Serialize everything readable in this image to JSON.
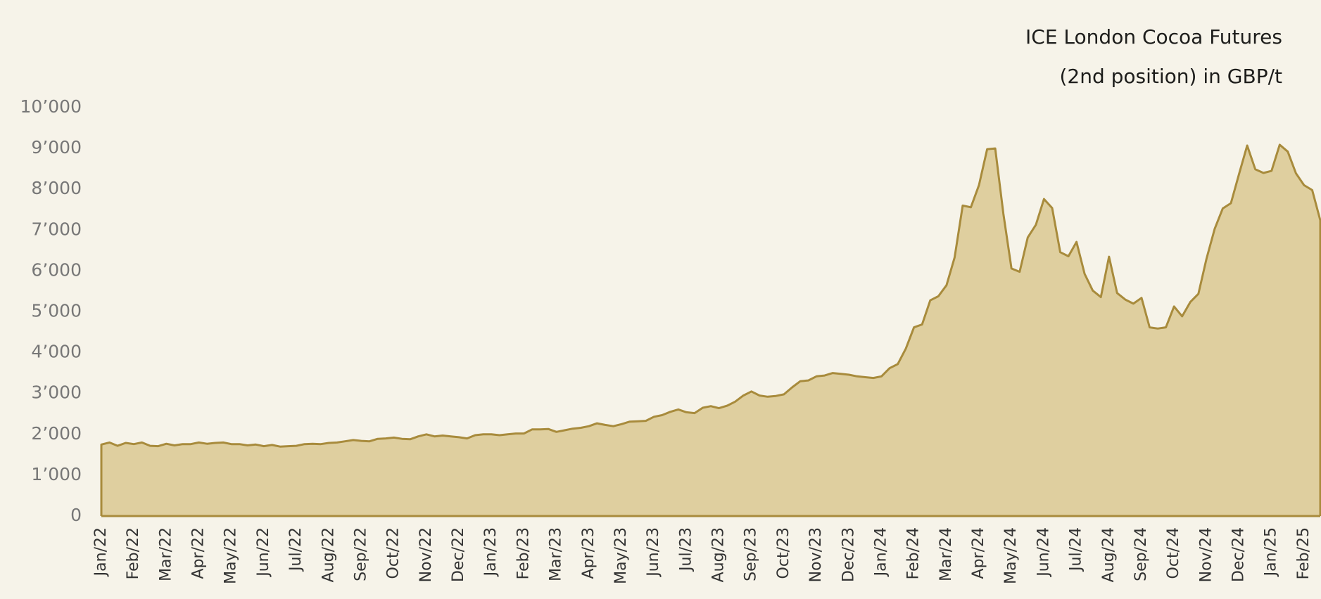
{
  "chart_data": {
    "type": "area",
    "title": "ICE London Cocoa Futures",
    "subtitle": "(2nd position) in GBP/t",
    "categories": [
      "Jan/22",
      null,
      null,
      null,
      "Feb/22",
      null,
      null,
      null,
      "Mar/22",
      null,
      null,
      null,
      "Apr/22",
      null,
      null,
      null,
      "May/22",
      null,
      null,
      null,
      "Jun/22",
      null,
      null,
      null,
      "Jul/22",
      null,
      null,
      null,
      "Aug/22",
      null,
      null,
      null,
      "Sep/22",
      null,
      null,
      null,
      "Oct/22",
      null,
      null,
      null,
      "Nov/22",
      null,
      null,
      null,
      "Dec/22",
      null,
      null,
      null,
      "Jan/23",
      null,
      null,
      null,
      "Feb/23",
      null,
      null,
      null,
      "Mar/23",
      null,
      null,
      null,
      "Apr/23",
      null,
      null,
      null,
      "May/23",
      null,
      null,
      null,
      "Jun/23",
      null,
      null,
      null,
      "Jul/23",
      null,
      null,
      null,
      "Aug/23",
      null,
      null,
      null,
      "Sep/23",
      null,
      null,
      null,
      "Oct/23",
      null,
      null,
      null,
      "Nov/23",
      null,
      null,
      null,
      "Dec/23",
      null,
      null,
      null,
      "Jan/24",
      null,
      null,
      null,
      "Feb/24",
      null,
      null,
      null,
      "Mar/24",
      null,
      null,
      null,
      "Apr/24",
      null,
      null,
      null,
      "May/24",
      null,
      null,
      null,
      "Jun/24",
      null,
      null,
      null,
      "Jul/24",
      null,
      null,
      null,
      "Aug/24",
      null,
      null,
      null,
      "Sep/24",
      null,
      null,
      null,
      "Oct/24",
      null,
      null,
      null,
      "Nov/24",
      null,
      null,
      null,
      "Dec/24",
      null,
      null,
      null,
      "Jan/25",
      null,
      null,
      null,
      "Feb/25",
      null,
      null
    ],
    "values": [
      1750,
      1800,
      1720,
      1790,
      1760,
      1800,
      1720,
      1710,
      1770,
      1730,
      1760,
      1760,
      1800,
      1770,
      1790,
      1800,
      1760,
      1760,
      1730,
      1750,
      1710,
      1740,
      1700,
      1710,
      1720,
      1760,
      1770,
      1760,
      1790,
      1800,
      1830,
      1860,
      1840,
      1830,
      1890,
      1900,
      1920,
      1890,
      1880,
      1950,
      2000,
      1950,
      1970,
      1950,
      1930,
      1900,
      1980,
      2000,
      2000,
      1980,
      2000,
      2020,
      2020,
      2120,
      2120,
      2130,
      2060,
      2100,
      2140,
      2160,
      2200,
      2270,
      2230,
      2200,
      2250,
      2310,
      2320,
      2330,
      2430,
      2470,
      2550,
      2610,
      2540,
      2520,
      2650,
      2690,
      2640,
      2700,
      2800,
      2950,
      3050,
      2950,
      2920,
      2940,
      2980,
      3150,
      3300,
      3320,
      3420,
      3440,
      3500,
      3480,
      3460,
      3420,
      3400,
      3380,
      3420,
      3620,
      3720,
      4100,
      4620,
      4690,
      5280,
      5380,
      5650,
      6330,
      7600,
      7560,
      8100,
      8980,
      9000,
      7400,
      6060,
      5980,
      6820,
      7130,
      7760,
      7540,
      6460,
      6360,
      6710,
      5930,
      5520,
      5360,
      6350,
      5460,
      5300,
      5200,
      5340,
      4620,
      4590,
      4620,
      5130,
      4890,
      5240,
      5440,
      6300,
      7030,
      7530,
      7660,
      8370,
      9070,
      8490,
      8400,
      8450,
      9090,
      8920,
      8390,
      8100,
      7980,
      7240
    ],
    "color": "#a88b3c",
    "fill": "#dfcf9f",
    "ylim": [
      0,
      10000
    ],
    "yticks": [
      0,
      {
        "value": 1000,
        "label": "1’000"
      },
      {
        "value": 2000,
        "label": "2’000"
      },
      {
        "value": 3000,
        "label": "3’000"
      },
      {
        "value": 4000,
        "label": "4’000"
      },
      {
        "value": 5000,
        "label": "5’000"
      },
      {
        "value": 6000,
        "label": "6’000"
      },
      {
        "value": 7000,
        "label": "7’000"
      },
      {
        "value": 8000,
        "label": "8’000"
      },
      {
        "value": 9000,
        "label": "9’000"
      },
      {
        "value": 10000,
        "label": "10’000"
      }
    ],
    "grid": false
  }
}
